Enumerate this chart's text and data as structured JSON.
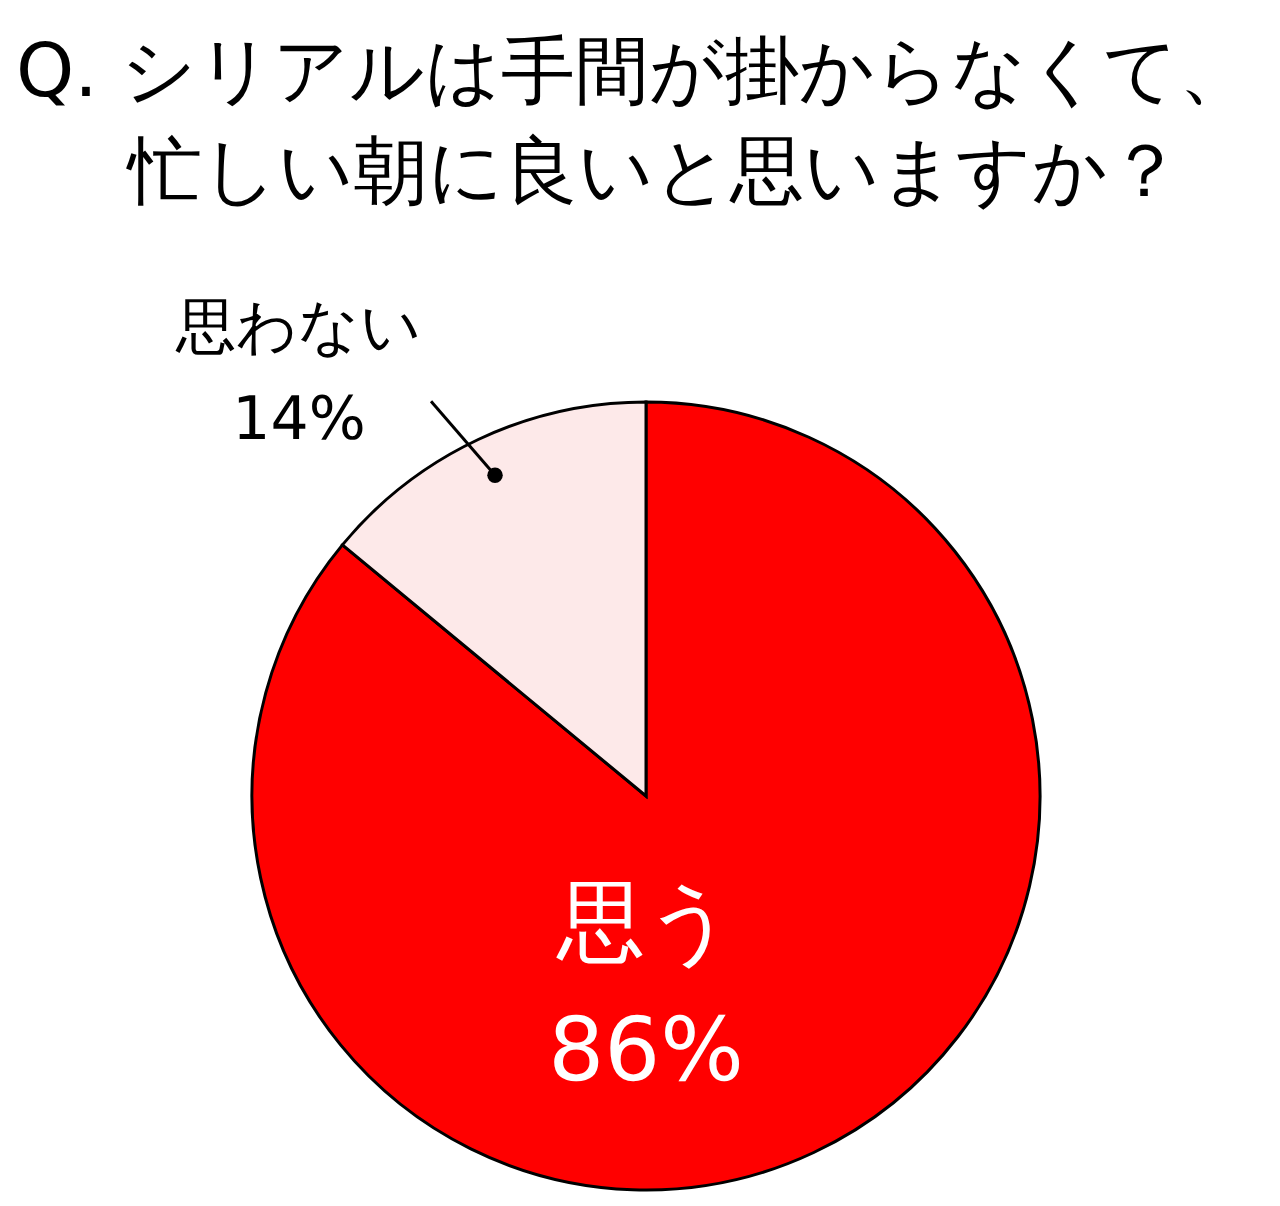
{
  "chart_data": {
    "type": "pie",
    "title": "Q. シリアルは手間が掛からなくて、忙しい朝に良いと思いますか？",
    "categories": [
      "思う",
      "思わない"
    ],
    "values": [
      86,
      14
    ],
    "colors": [
      "#ff0000",
      "#fde9e9"
    ],
    "value_labels": [
      "86%",
      "14%"
    ]
  }
}
